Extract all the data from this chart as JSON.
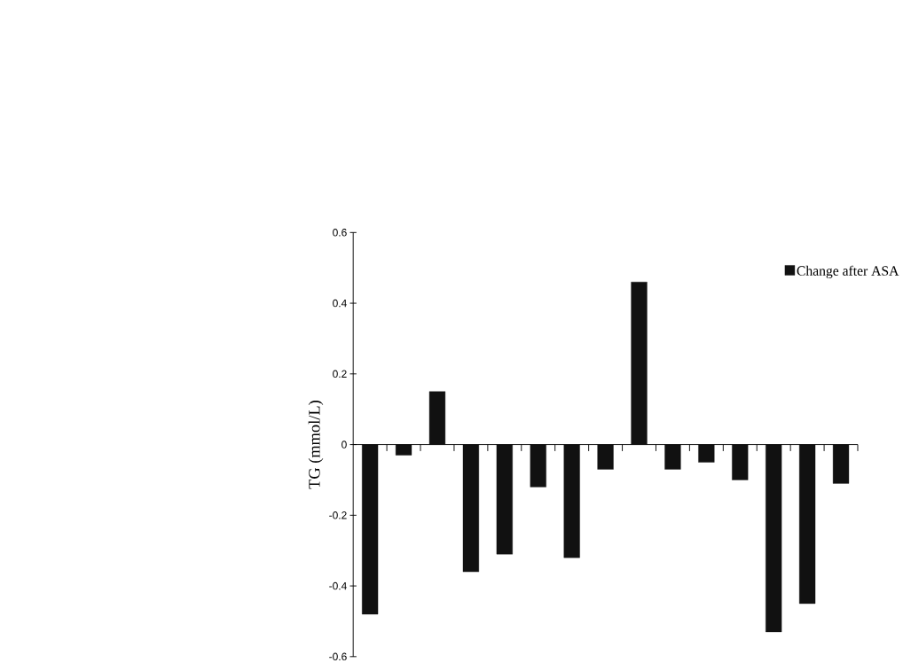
{
  "chart_data": {
    "type": "bar",
    "ylabel": "TG (mmol/L)",
    "categories": [
      null,
      null,
      null,
      null,
      null,
      null,
      null,
      null,
      null,
      null,
      null,
      null,
      null,
      null,
      null
    ],
    "series": [
      {
        "name": "Change after ASA",
        "color": "#111111",
        "values": [
          -0.48,
          -0.03,
          0.15,
          -0.36,
          -0.31,
          -0.12,
          -0.32,
          -0.07,
          0.46,
          -0.07,
          -0.05,
          -0.1,
          -0.53,
          -0.45,
          -0.11
        ]
      }
    ],
    "ylim": [
      -0.6,
      0.6
    ],
    "yticks": [
      0.6,
      0.4,
      0.2,
      0,
      -0.2,
      -0.4,
      -0.6
    ],
    "legend": "top right"
  }
}
